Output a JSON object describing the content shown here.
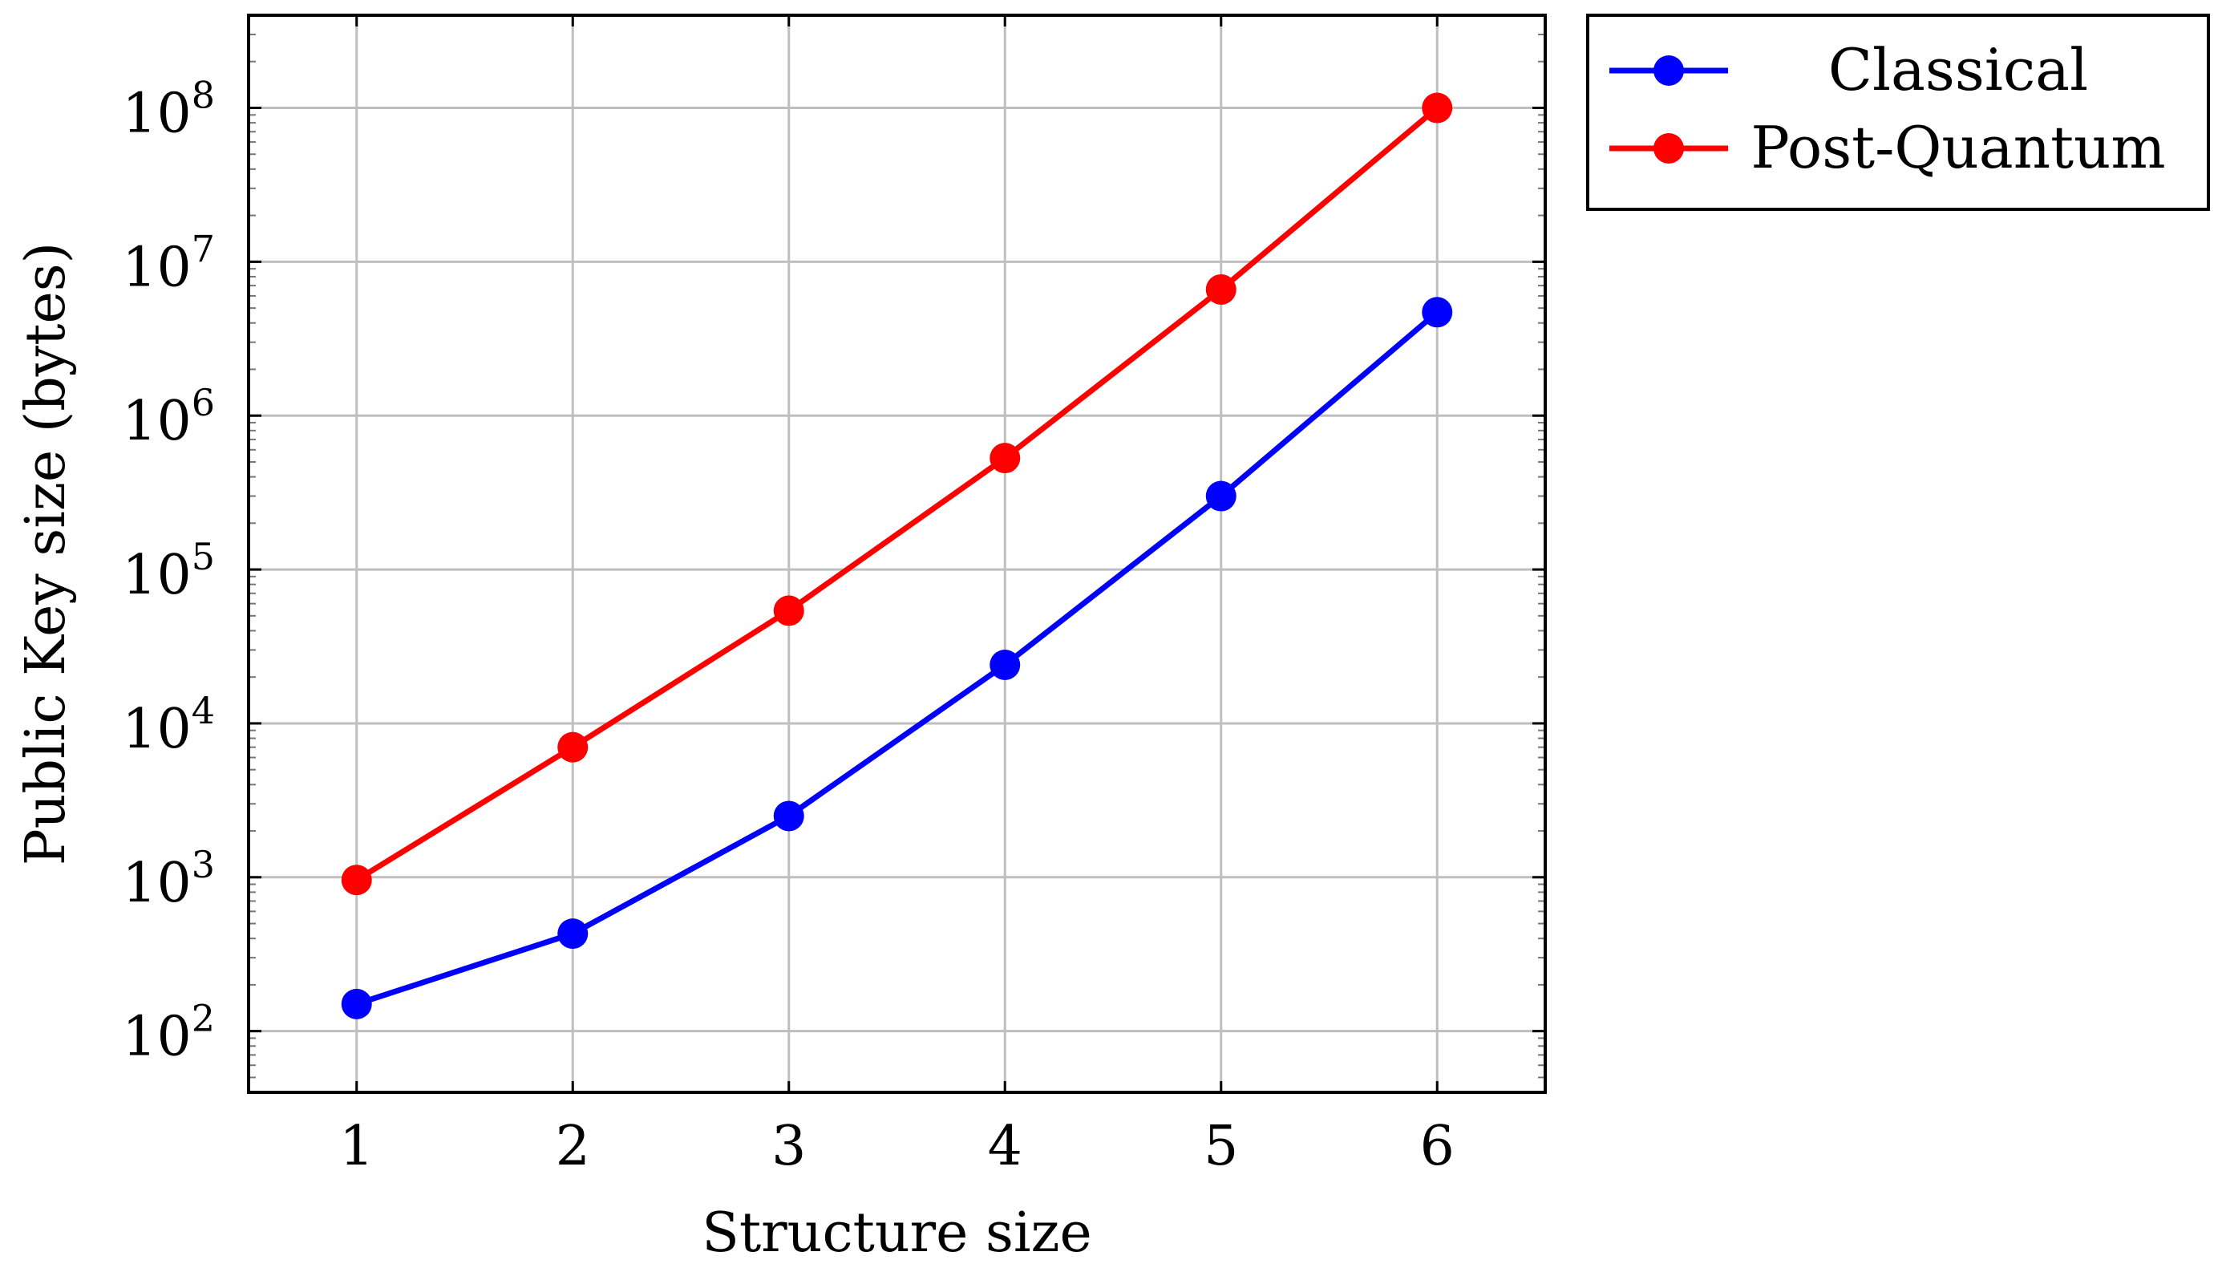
{
  "chart_data": {
    "type": "line",
    "title": "",
    "xlabel": "Structure size",
    "ylabel": "Public Key size (bytes)",
    "x": [
      1,
      2,
      3,
      4,
      5,
      6
    ],
    "x_ticks": [
      "1",
      "2",
      "3",
      "4",
      "5",
      "6"
    ],
    "xlim": [
      0.5,
      6.5
    ],
    "yscale": "log",
    "ylim": [
      40,
      400000000
    ],
    "y_tick_exponents": [
      2,
      3,
      4,
      5,
      6,
      7,
      8
    ],
    "grid": true,
    "legend_position": "outside-top-right",
    "series": [
      {
        "name": "Classical",
        "color": "#0000ff",
        "values": [
          150,
          430,
          2500,
          24000,
          300000,
          4700000
        ]
      },
      {
        "name": "Post-Quantum",
        "color": "#ff0000",
        "values": [
          960,
          7000,
          54000,
          530000,
          6600000,
          100000000
        ]
      }
    ]
  }
}
